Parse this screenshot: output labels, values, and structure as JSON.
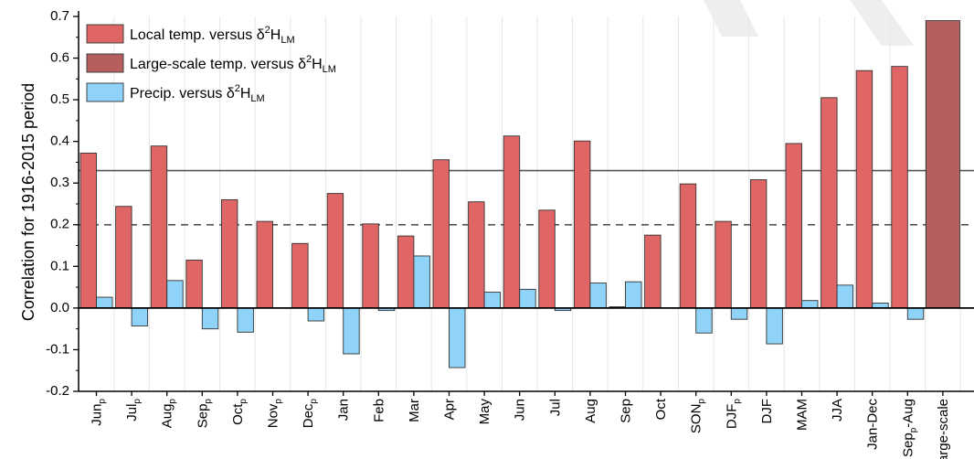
{
  "chart_data": {
    "type": "bar",
    "ylabel": "Correlation for 1916-2015 period",
    "ylim": [
      -0.2,
      0.7
    ],
    "yticks": [
      "-0.2",
      "-0.1",
      "0.0",
      "0.1",
      "0.2",
      "0.3",
      "0.4",
      "0.5",
      "0.6",
      "0.7"
    ],
    "grid": true,
    "legend_position": "top-left",
    "categories": [
      {
        "base": "Jun",
        "sub": "p",
        "tail": ""
      },
      {
        "base": "Jul",
        "sub": "p",
        "tail": ""
      },
      {
        "base": "Aug",
        "sub": "p",
        "tail": ""
      },
      {
        "base": "Sep",
        "sub": "p",
        "tail": ""
      },
      {
        "base": "Oct",
        "sub": "p",
        "tail": ""
      },
      {
        "base": "Nov",
        "sub": "p",
        "tail": ""
      },
      {
        "base": "Dec",
        "sub": "p",
        "tail": ""
      },
      {
        "base": "Jan",
        "sub": "",
        "tail": ""
      },
      {
        "base": "Feb",
        "sub": "",
        "tail": ""
      },
      {
        "base": "Mar",
        "sub": "",
        "tail": ""
      },
      {
        "base": "Apr",
        "sub": "",
        "tail": ""
      },
      {
        "base": "May",
        "sub": "",
        "tail": ""
      },
      {
        "base": "Jun",
        "sub": "",
        "tail": ""
      },
      {
        "base": "Jul",
        "sub": "",
        "tail": ""
      },
      {
        "base": "Aug",
        "sub": "",
        "tail": ""
      },
      {
        "base": "Sep",
        "sub": "",
        "tail": ""
      },
      {
        "base": "Oct",
        "sub": "",
        "tail": ""
      },
      {
        "base": "SON",
        "sub": "p",
        "tail": ""
      },
      {
        "base": "DJF",
        "sub": "p",
        "tail": ""
      },
      {
        "base": "DJF",
        "sub": "",
        "tail": ""
      },
      {
        "base": "MAM",
        "sub": "",
        "tail": ""
      },
      {
        "base": "JJA",
        "sub": "",
        "tail": ""
      },
      {
        "base": "Jan-Dec",
        "sub": "",
        "tail": ""
      },
      {
        "base": "Sep",
        "sub": "p",
        "tail": "-Aug"
      },
      {
        "base": "large-scale",
        "sub": "",
        "tail": ""
      }
    ],
    "series": [
      {
        "name": "Local temp. versus δ2HLM",
        "legend_parts": {
          "text": "Local temp. versus δ",
          "sup": "2",
          "base": "H",
          "sub": "LM"
        },
        "color": "#e06666",
        "values": [
          0.372,
          0.244,
          0.389,
          0.115,
          0.26,
          0.208,
          0.155,
          0.275,
          0.202,
          0.173,
          0.356,
          0.255,
          0.413,
          0.235,
          0.401,
          0.003,
          0.175,
          0.298,
          0.208,
          0.308,
          0.395,
          0.505,
          0.57,
          0.58,
          null
        ]
      },
      {
        "name": "Large-scale temp. versus δ2HLM",
        "legend_parts": {
          "text": "Large-scale temp. versus δ",
          "sup": "2",
          "base": "H",
          "sub": "LM"
        },
        "color": "#b5605f",
        "values": [
          null,
          null,
          null,
          null,
          null,
          null,
          null,
          null,
          null,
          null,
          null,
          null,
          null,
          null,
          null,
          null,
          null,
          null,
          null,
          null,
          null,
          null,
          null,
          null,
          0.69
        ]
      },
      {
        "name": "Precip. versus δ2HLM",
        "legend_parts": {
          "text": "Precip. versus δ",
          "sup": "2",
          "base": "H",
          "sub": "LM"
        },
        "color": "#8fd3f8",
        "values": [
          0.026,
          -0.043,
          0.066,
          -0.05,
          -0.058,
          null,
          -0.031,
          -0.11,
          -0.006,
          0.125,
          -0.143,
          0.038,
          0.045,
          -0.006,
          0.06,
          0.063,
          null,
          -0.06,
          -0.027,
          -0.086,
          0.018,
          0.055,
          0.012,
          -0.027,
          null
        ]
      }
    ],
    "reference_lines": [
      {
        "value": 0.33,
        "style": "solid"
      },
      {
        "value": 0.2,
        "style": "dashed"
      }
    ]
  }
}
